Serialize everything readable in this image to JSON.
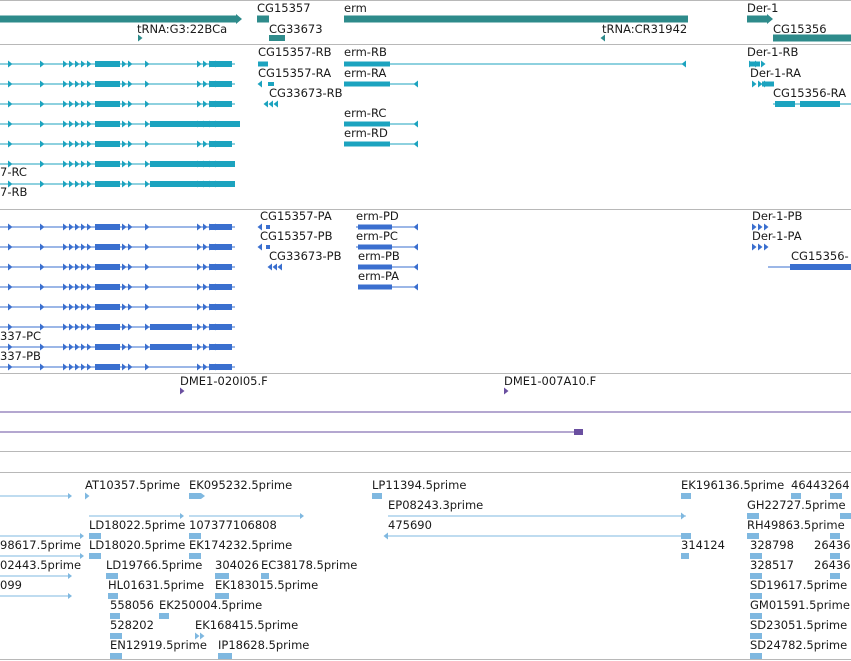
{
  "colors": {
    "gene": "#2e8b8b",
    "transcript_a": "#1ca3bf",
    "transcript_b": "#3a6fcf",
    "marker": "#6a4fa0",
    "est": "#7fb8e0",
    "separator": "#b8b8b8",
    "label": "#1a1a1a"
  },
  "tracks": {
    "genes": {
      "labels": {
        "cg15357": "CG15357",
        "erm": "erm",
        "der1": "Der-1",
        "trna_g3": "tRNA:G3:22BCa",
        "cg33673": "CG33673",
        "trna_cr": "tRNA:CR31942",
        "cg15356": "CG15356"
      }
    },
    "transcripts_r": {
      "labels": {
        "cg15357_rb": "CG15357-RB",
        "erm_rb": "erm-RB",
        "der1_rb": "Der-1-RB",
        "cg15357_ra": "CG15357-RA",
        "erm_ra": "erm-RA",
        "der1_ra": "Der-1-RA",
        "cg33673_rb": "CG33673-RB",
        "cg15356_ra": "CG15356-RA",
        "erm_rc": "erm-RC",
        "erm_rd": "erm-RD",
        "left_rc": "7-RC",
        "left_rb": "7-RB"
      }
    },
    "transcripts_p": {
      "labels": {
        "cg15357_pa": "CG15357-PA",
        "erm_pd": "erm-PD",
        "der1_pb": "Der-1-PB",
        "cg15357_pb": "CG15357-PB",
        "erm_pc": "erm-PC",
        "der1_pa": "Der-1-PA",
        "cg33673_pb": "CG33673-PB",
        "erm_pb": "erm-PB",
        "cg15356_p": "CG15356-",
        "erm_pa": "erm-PA",
        "left_pc": "337-PC",
        "left_pb": "337-PB"
      }
    },
    "markers": {
      "labels": {
        "dme1_020": "DME1-020I05.F",
        "dme1_007": "DME1-007A10.F"
      }
    },
    "ests": {
      "labels": {
        "at10357": "AT10357.5prime",
        "ek095232": "EK095232.5prime",
        "lp11394": "LP11394.5prime",
        "ek196136": "EK196136.5prime",
        "n46443264": "46443264",
        "gh22727": "GH22727.5prime",
        "ep08243": "EP08243.3prime",
        "ld18022": "LD18022.5prime",
        "n107377106808": "107377106808",
        "rh49863": "RH49863.5prime",
        "n475690": "475690",
        "l98617": "98617.5prime",
        "ld18020": "LD18020.5prime",
        "ek174232": "EK174232.5prime",
        "n314124": "314124",
        "n328798": "328798",
        "n26436a": "26436",
        "l02443": "02443.5prime",
        "ld19766": "LD19766.5prime",
        "n304026": "304026",
        "ec38178": "EC38178.5prime",
        "n328517": "328517",
        "n26436b": "26436",
        "l099": "099",
        "hl01631": "HL01631.5prime",
        "ek183015": "EK183015.5prime",
        "sd19617": "SD19617.5prime",
        "n558056": "558056",
        "ek250004": "EK250004.5prime",
        "gm01591": "GM01591.5prime",
        "n528202": "528202",
        "ek168415": "EK168415.5prime",
        "sd23051": "SD23051.5prime",
        "en12919": "EN12919.5prime",
        "ip18628": "IP18628.5prime",
        "sd24782": "SD24782.5prime"
      }
    }
  }
}
